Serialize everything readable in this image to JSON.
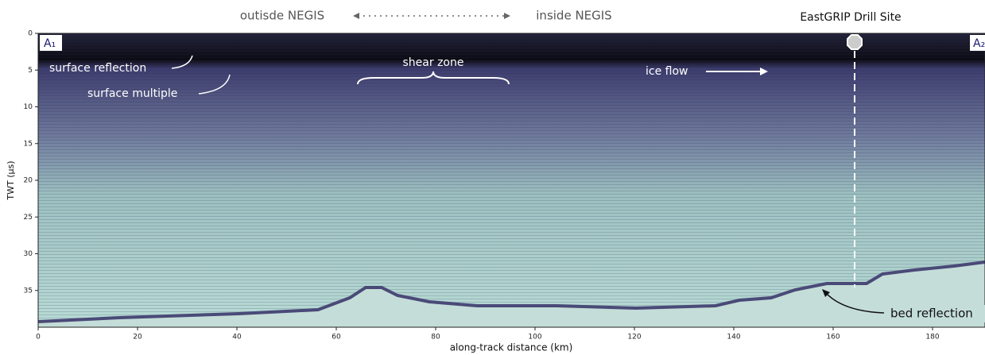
{
  "chart_data": {
    "type": "radargram",
    "xlabel": "along-track distance (km)",
    "ylabel": "TWT (µs)",
    "xlim": [
      0,
      190
    ],
    "xticks": [
      0,
      20,
      40,
      60,
      80,
      100,
      120,
      140,
      160,
      180
    ],
    "ylim": [
      40,
      0
    ],
    "yticks": [
      0,
      5,
      10,
      15,
      20,
      25,
      30,
      35
    ],
    "annotations": {
      "left_region": "outisde NEGIS",
      "right_region": "inside NEGIS",
      "site": "EastGRIP Drill Site",
      "start": "A₁",
      "end": "A₂",
      "surface_reflection": "surface reflection",
      "surface_multiple": "surface multiple",
      "shear_zone": "shear zone",
      "ice_flow": "ice flow",
      "bed_reflection": "bed reflection"
    }
  }
}
